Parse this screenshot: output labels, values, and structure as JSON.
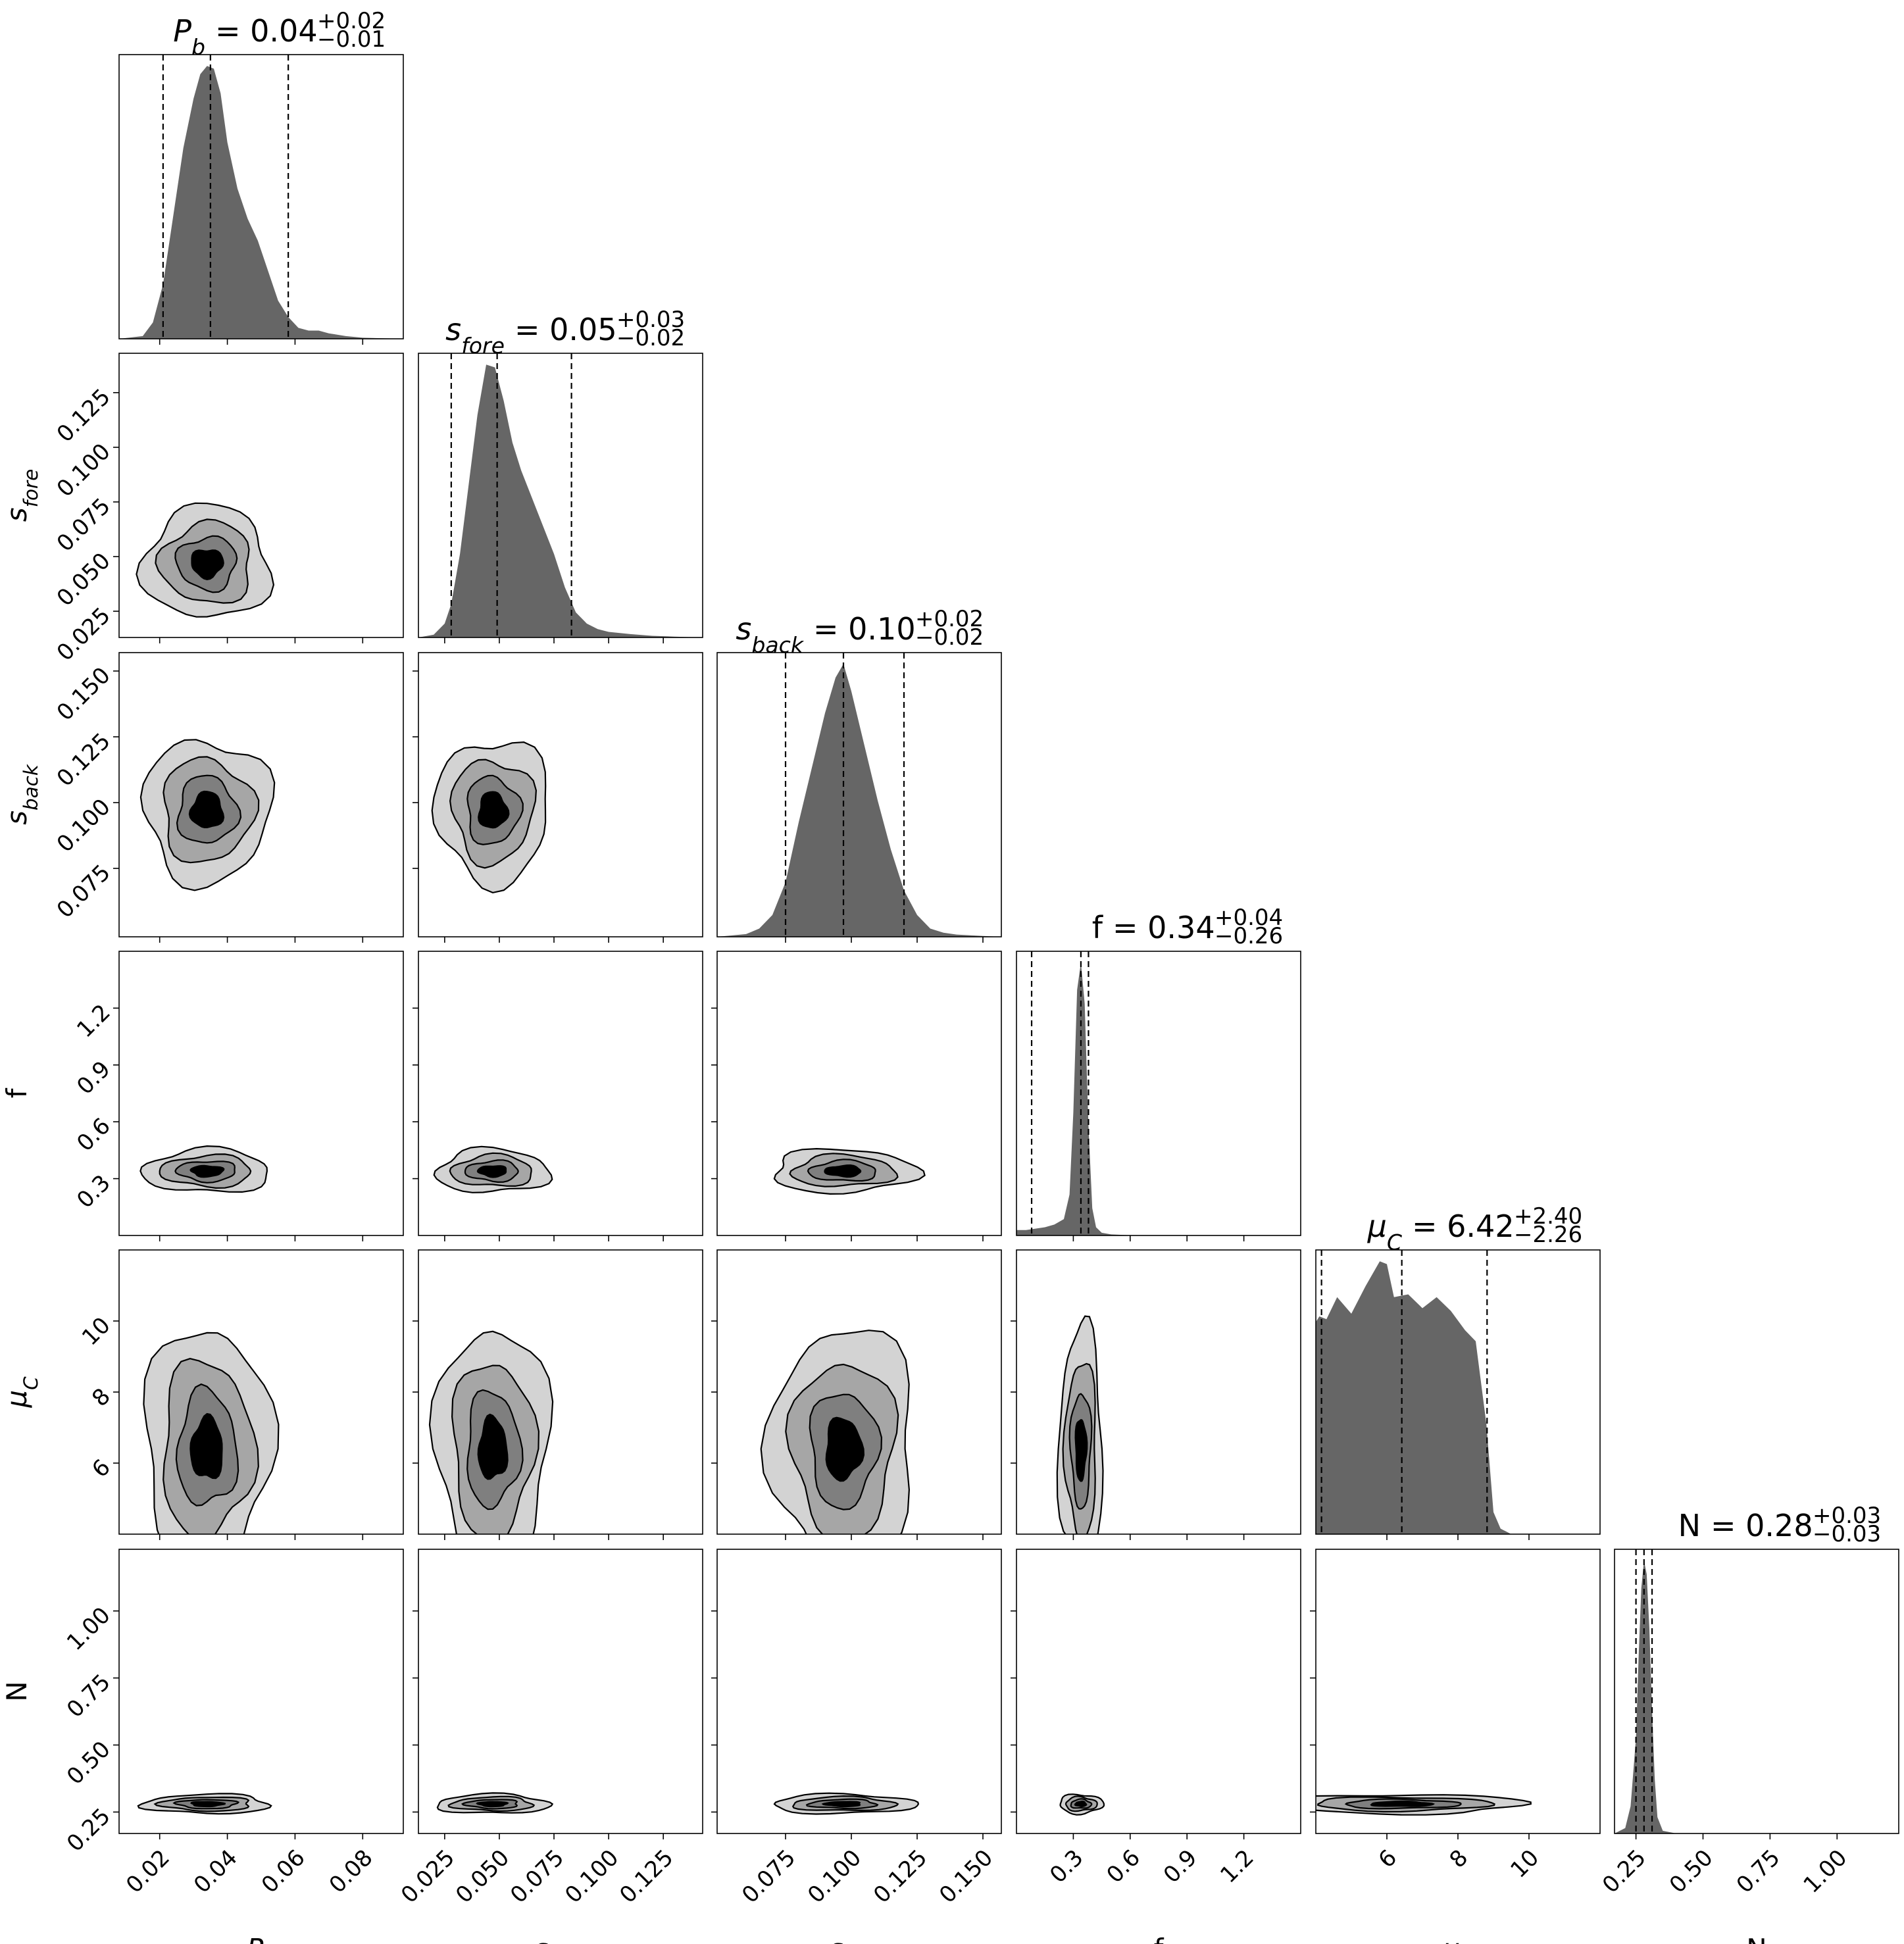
{
  "chart_data": {
    "type": "corner",
    "parameters": [
      {
        "key": "Pb",
        "label_main": "P",
        "label_sub": "b",
        "range": [
          0.008,
          0.092
        ],
        "ticks": [
          0.02,
          0.04,
          0.06,
          0.08
        ],
        "tick_labels": [
          "0.02",
          "0.04",
          "0.06",
          "0.08"
        ],
        "title_name_main": "P",
        "title_name_sub": "b",
        "title_value": "0.04",
        "title_plus": "+0.02",
        "title_minus": "−0.01",
        "quantiles": [
          0.021,
          0.035,
          0.058
        ]
      },
      {
        "key": "sfore",
        "label_main": "s",
        "label_sub": "fore",
        "range": [
          0.013,
          0.143
        ],
        "ticks": [
          0.025,
          0.05,
          0.075,
          0.1,
          0.125
        ],
        "tick_labels": [
          "0.025",
          "0.050",
          "0.075",
          "0.100",
          "0.125"
        ],
        "title_name_main": "s",
        "title_name_sub": "fore",
        "title_value": "0.05",
        "title_plus": "+0.03",
        "title_minus": "−0.02",
        "quantiles": [
          0.028,
          0.049,
          0.083
        ]
      },
      {
        "key": "sback",
        "label_main": "s",
        "label_sub": "back",
        "range": [
          0.049,
          0.157
        ],
        "ticks": [
          0.075,
          0.1,
          0.125,
          0.15
        ],
        "tick_labels": [
          "0.075",
          "0.100",
          "0.125",
          "0.150"
        ],
        "title_name_main": "s",
        "title_name_sub": "back",
        "title_value": "0.10",
        "title_plus": "+0.02",
        "title_minus": "−0.02",
        "quantiles": [
          0.075,
          0.097,
          0.12
        ]
      },
      {
        "key": "f",
        "label_main": "f",
        "label_sub": "",
        "range": [
          0.0,
          1.5
        ],
        "ticks": [
          0.3,
          0.6,
          0.9,
          1.2
        ],
        "tick_labels": [
          "0.3",
          "0.6",
          "0.9",
          "1.2"
        ],
        "title_name_main": "f",
        "title_name_sub": "",
        "title_value": "0.34",
        "title_plus": "+0.04",
        "title_minus": "−0.26",
        "quantiles": [
          0.08,
          0.34,
          0.38
        ]
      },
      {
        "key": "muC",
        "label_main": "μ",
        "label_sub": "C",
        "range": [
          4.0,
          12.0
        ],
        "ticks": [
          6,
          8,
          10
        ],
        "tick_labels": [
          "6",
          "8",
          "10"
        ],
        "title_name_main": "μ",
        "title_name_sub": "C",
        "title_value": "6.42",
        "title_plus": "+2.40",
        "title_minus": "−2.26",
        "quantiles": [
          4.16,
          6.42,
          8.82
        ]
      },
      {
        "key": "N",
        "label_main": "N",
        "label_sub": "",
        "range": [
          0.17,
          1.23
        ],
        "ticks": [
          0.25,
          0.5,
          0.75,
          1.0
        ],
        "tick_labels": [
          "0.25",
          "0.50",
          "0.75",
          "1.00"
        ],
        "title_name_main": "N",
        "title_name_sub": "",
        "title_value": "0.28",
        "title_plus": "+0.03",
        "title_minus": "−0.03",
        "quantiles": [
          0.25,
          0.28,
          0.31
        ]
      }
    ],
    "marginals": [
      {
        "x": [
          0.008,
          0.015,
          0.018,
          0.021,
          0.024,
          0.027,
          0.03,
          0.032,
          0.034,
          0.036,
          0.038,
          0.04,
          0.043,
          0.046,
          0.049,
          0.052,
          0.055,
          0.058,
          0.061,
          0.064,
          0.067,
          0.07,
          0.075,
          0.08,
          0.092
        ],
        "y": [
          0.0,
          0.01,
          0.06,
          0.2,
          0.45,
          0.7,
          0.88,
          0.97,
          1.0,
          0.99,
          0.9,
          0.72,
          0.55,
          0.44,
          0.36,
          0.25,
          0.14,
          0.08,
          0.04,
          0.03,
          0.03,
          0.02,
          0.01,
          0.004,
          0.0
        ]
      },
      {
        "x": [
          0.013,
          0.02,
          0.025,
          0.028,
          0.032,
          0.036,
          0.04,
          0.044,
          0.048,
          0.052,
          0.056,
          0.06,
          0.065,
          0.07,
          0.075,
          0.08,
          0.085,
          0.09,
          0.095,
          0.1,
          0.11,
          0.12,
          0.13,
          0.143
        ],
        "y": [
          0.0,
          0.01,
          0.05,
          0.12,
          0.3,
          0.55,
          0.8,
          0.98,
          0.97,
          0.85,
          0.7,
          0.6,
          0.5,
          0.4,
          0.3,
          0.18,
          0.09,
          0.05,
          0.03,
          0.02,
          0.012,
          0.006,
          0.003,
          0.0
        ]
      },
      {
        "x": [
          0.049,
          0.06,
          0.065,
          0.07,
          0.075,
          0.08,
          0.085,
          0.09,
          0.094,
          0.097,
          0.1,
          0.105,
          0.11,
          0.115,
          0.12,
          0.125,
          0.13,
          0.135,
          0.14,
          0.15,
          0.157
        ],
        "y": [
          0.0,
          0.01,
          0.03,
          0.08,
          0.2,
          0.42,
          0.62,
          0.82,
          0.95,
          1.0,
          0.9,
          0.7,
          0.5,
          0.32,
          0.17,
          0.08,
          0.03,
          0.015,
          0.008,
          0.003,
          0.0
        ]
      },
      {
        "x": [
          0.0,
          0.05,
          0.1,
          0.15,
          0.2,
          0.25,
          0.28,
          0.3,
          0.32,
          0.34,
          0.36,
          0.38,
          0.4,
          0.42,
          0.45,
          0.5,
          0.6,
          1.5
        ],
        "y": [
          0.02,
          0.02,
          0.025,
          0.03,
          0.04,
          0.06,
          0.15,
          0.45,
          0.9,
          1.0,
          0.85,
          0.4,
          0.1,
          0.03,
          0.01,
          0.004,
          0.001,
          0.0
        ]
      },
      {
        "x": [
          4.0,
          4.1,
          4.3,
          4.6,
          5.0,
          5.4,
          5.8,
          6.0,
          6.2,
          6.6,
          7.0,
          7.4,
          7.8,
          8.2,
          8.5,
          8.8,
          9.0,
          9.2,
          9.5,
          12.0
        ],
        "y": [
          0.77,
          0.79,
          0.78,
          0.86,
          0.8,
          0.9,
          0.99,
          0.98,
          0.86,
          0.87,
          0.82,
          0.86,
          0.81,
          0.74,
          0.7,
          0.4,
          0.08,
          0.02,
          0.0,
          0.0
        ]
      },
      {
        "x": [
          0.17,
          0.21,
          0.23,
          0.25,
          0.26,
          0.27,
          0.28,
          0.29,
          0.3,
          0.31,
          0.32,
          0.33,
          0.35,
          0.4,
          1.23
        ],
        "y": [
          0.0,
          0.02,
          0.1,
          0.35,
          0.65,
          0.9,
          1.0,
          0.95,
          0.75,
          0.45,
          0.2,
          0.06,
          0.01,
          0.0,
          0.0
        ]
      }
    ],
    "contour_centers": {
      "Pb": 0.034,
      "sfore": 0.047,
      "sback": 0.097,
      "f": 0.34,
      "muC": 6.4,
      "N": 0.28
    },
    "contour_halfwidths": {
      "Pb": 0.013,
      "sfore": 0.018,
      "sback": 0.019,
      "f": 0.08,
      "muC": 2.4,
      "N": 0.025
    },
    "contour_levels": [
      0.4,
      0.75,
      1.15,
      1.6
    ],
    "contour_fills": [
      "#000000",
      "#7f7f7f",
      "#a6a6a6",
      "#d3d3d3"
    ]
  }
}
